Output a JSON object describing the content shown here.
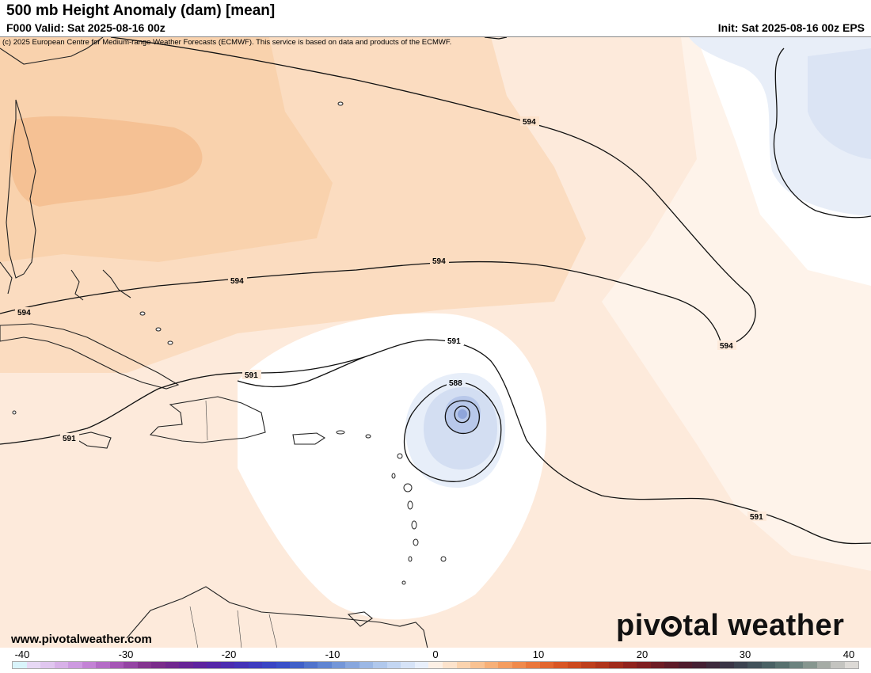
{
  "header": {
    "title": "500 mb Height Anomaly (dam) [mean]",
    "valid": "F000 Valid: Sat 2025-08-16 00z",
    "init": "Init: Sat 2025-08-16 00z EPS"
  },
  "map": {
    "copyright": "(c) 2025 European Centre for Medium-range Weather Forecasts (ECMWF). This service is based on data and products of the ECMWF.",
    "contour_labels": [
      "594",
      "594",
      "594",
      "594",
      "594",
      "591",
      "591",
      "591",
      "591",
      "588"
    ],
    "colors": {
      "warm_strong": "#f5be8c",
      "warm_mid": "#f9d3ad",
      "warm_light": "#fde3cc",
      "warm_faint": "#fdeee0",
      "cool_light": "#e6edf8",
      "cool_mid": "#c7d5ee",
      "cool_strong": "#8fa5da"
    }
  },
  "footer": {
    "site": "www.pivotalweather.com",
    "brand_pre": "piv",
    "brand_post": "tal weather"
  },
  "colorbar": {
    "ticks": [
      "-40",
      "-30",
      "-20",
      "-10",
      "0",
      "10",
      "20",
      "30",
      "40"
    ]
  }
}
